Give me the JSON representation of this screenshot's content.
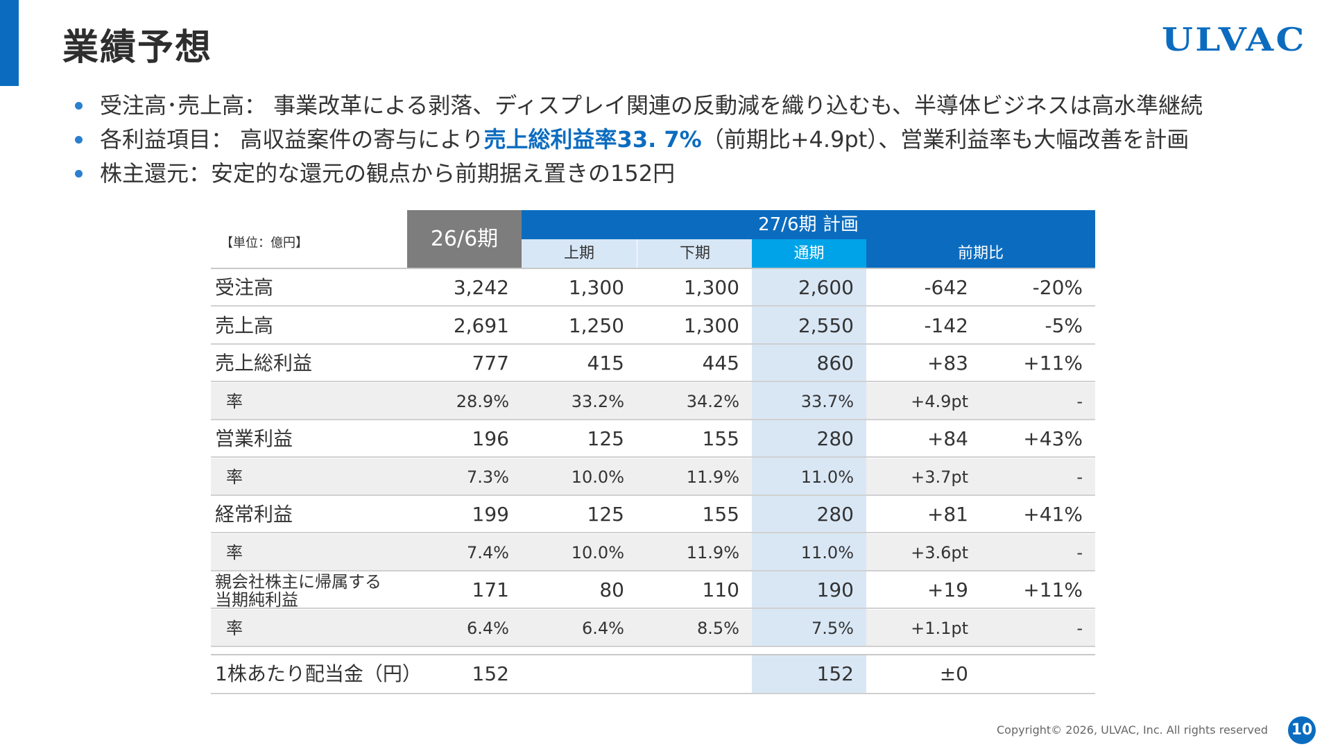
{
  "page": {
    "title": "業績予想",
    "logo": "ULVAC",
    "footer": "Copyright© 2026, ULVAC, Inc. All rights reserved",
    "page_number": "10",
    "accent_color": "#0b6cbf"
  },
  "bullets": [
    {
      "text": "受注高･売上高： 事業改革による剥落、ディスプレイ関連の反動減を織り込むも、半導体ビジネスは高水準継続"
    },
    {
      "pre": "各利益項目： 高収益案件の寄与により",
      "highlight": "売上総利益率33. 7%",
      "post": "（前期比+4.9pt）、営業利益率も大幅改善を計画"
    },
    {
      "text": "株主還元：安定的な還元の観点から前期据え置きの152円"
    }
  ],
  "table": {
    "unit": "【単位：億円】",
    "col_fy26": "26/6期",
    "col_plan": "27/6期 計画",
    "col_first_half": "上期",
    "col_second_half": "下期",
    "col_full_year": "通期",
    "col_yoy": "前期比",
    "rows": [
      {
        "label": "受注高",
        "fy26": "3,242",
        "h1": "1,300",
        "h2": "1,300",
        "full": "2,600",
        "diff": "-642",
        "pct": "-20%"
      },
      {
        "label": "売上高",
        "fy26": "2,691",
        "h1": "1,250",
        "h2": "1,300",
        "full": "2,550",
        "diff": "-142",
        "pct": "-5%"
      },
      {
        "label": "売上総利益",
        "fy26": "777",
        "h1": "415",
        "h2": "445",
        "full": "860",
        "diff": "+83",
        "pct": "+11%"
      },
      {
        "label": "率",
        "fy26": "28.9%",
        "h1": "33.2%",
        "h2": "34.2%",
        "full": "33.7%",
        "diff": "+4.9pt",
        "pct": "-"
      },
      {
        "label": "営業利益",
        "fy26": "196",
        "h1": "125",
        "h2": "155",
        "full": "280",
        "diff": "+84",
        "pct": "+43%"
      },
      {
        "label": "率",
        "fy26": "7.3%",
        "h1": "10.0%",
        "h2": "11.9%",
        "full": "11.0%",
        "diff": "+3.7pt",
        "pct": "-"
      },
      {
        "label": "経常利益",
        "fy26": "199",
        "h1": "125",
        "h2": "155",
        "full": "280",
        "diff": "+81",
        "pct": "+41%"
      },
      {
        "label": "率",
        "fy26": "7.4%",
        "h1": "10.0%",
        "h2": "11.9%",
        "full": "11.0%",
        "diff": "+3.6pt",
        "pct": "-"
      },
      {
        "label": "親会社株主に帰属する",
        "label2": "当期純利益",
        "fy26": "171",
        "h1": "80",
        "h2": "110",
        "full": "190",
        "diff": "+19",
        "pct": "+11%"
      },
      {
        "label": "率",
        "fy26": "6.4%",
        "h1": "6.4%",
        "h2": "8.5%",
        "full": "7.5%",
        "diff": "+1.1pt",
        "pct": "-"
      }
    ],
    "dividend": {
      "label": "1株あたり配当金（円）",
      "fy26": "152",
      "full": "152",
      "diff": "±0"
    }
  }
}
